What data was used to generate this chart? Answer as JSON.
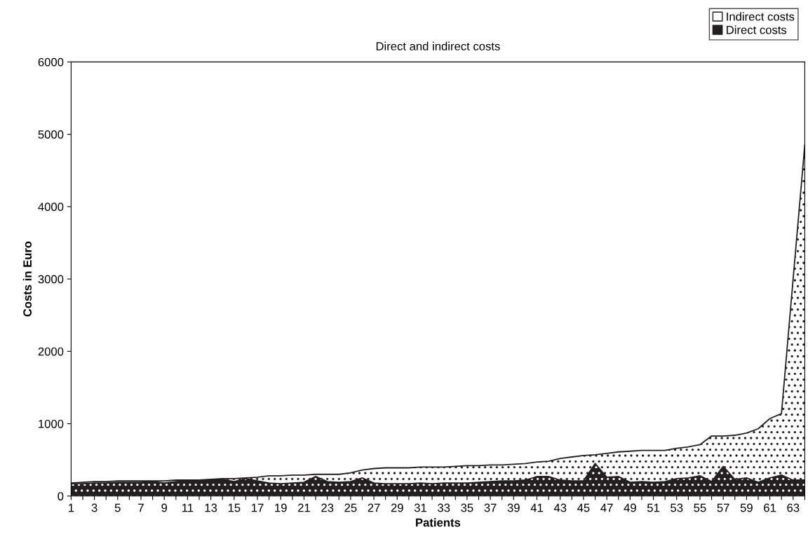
{
  "chart_data": {
    "type": "area",
    "stacked": true,
    "title": "Direct and indirect costs",
    "xlabel": "Patients",
    "ylabel": "Costs in Euro",
    "categories": [
      "1",
      null,
      "3",
      null,
      "5",
      null,
      "7",
      null,
      "9",
      null,
      "11",
      null,
      "13",
      null,
      "15",
      null,
      "17",
      null,
      "19",
      null,
      "21",
      null,
      "23",
      null,
      "25",
      null,
      "27",
      null,
      "29",
      null,
      "31",
      null,
      "33",
      null,
      "35",
      null,
      "37",
      null,
      "39",
      null,
      "41",
      null,
      "43",
      null,
      "45",
      null,
      "47",
      null,
      "49",
      null,
      "51",
      null,
      "53",
      null,
      "55",
      null,
      "57",
      null,
      "59",
      null,
      "61",
      null,
      "63",
      null
    ],
    "series": [
      {
        "name": "Direct costs",
        "color": "#231f20",
        "values": [
          170,
          170,
          180,
          180,
          190,
          190,
          190,
          200,
          180,
          200,
          210,
          210,
          220,
          230,
          200,
          240,
          210,
          180,
          170,
          180,
          190,
          270,
          200,
          190,
          200,
          250,
          180,
          170,
          170,
          170,
          180,
          170,
          180,
          180,
          180,
          190,
          200,
          210,
          210,
          220,
          270,
          270,
          220,
          210,
          210,
          450,
          260,
          270,
          190,
          200,
          190,
          200,
          240,
          250,
          280,
          200,
          410,
          230,
          250,
          190,
          250,
          290,
          220,
          220
        ]
      },
      {
        "name": "Indirect costs",
        "color": "#ffffff",
        "values": [
          10,
          20,
          20,
          20,
          20,
          20,
          20,
          10,
          30,
          20,
          10,
          10,
          10,
          10,
          40,
          10,
          50,
          100,
          110,
          110,
          100,
          30,
          100,
          110,
          120,
          110,
          200,
          220,
          220,
          220,
          220,
          230,
          220,
          230,
          240,
          230,
          230,
          220,
          230,
          230,
          200,
          210,
          300,
          330,
          350,
          120,
          330,
          340,
          430,
          430,
          440,
          430,
          420,
          430,
          430,
          630,
          420,
          610,
          620,
          740,
          820,
          850,
          2780,
          4630
        ]
      }
    ],
    "ylim": [
      0,
      6000
    ],
    "yticks": [
      0,
      1000,
      2000,
      3000,
      4000,
      5000,
      6000
    ],
    "grid": false,
    "legend": "top right"
  }
}
